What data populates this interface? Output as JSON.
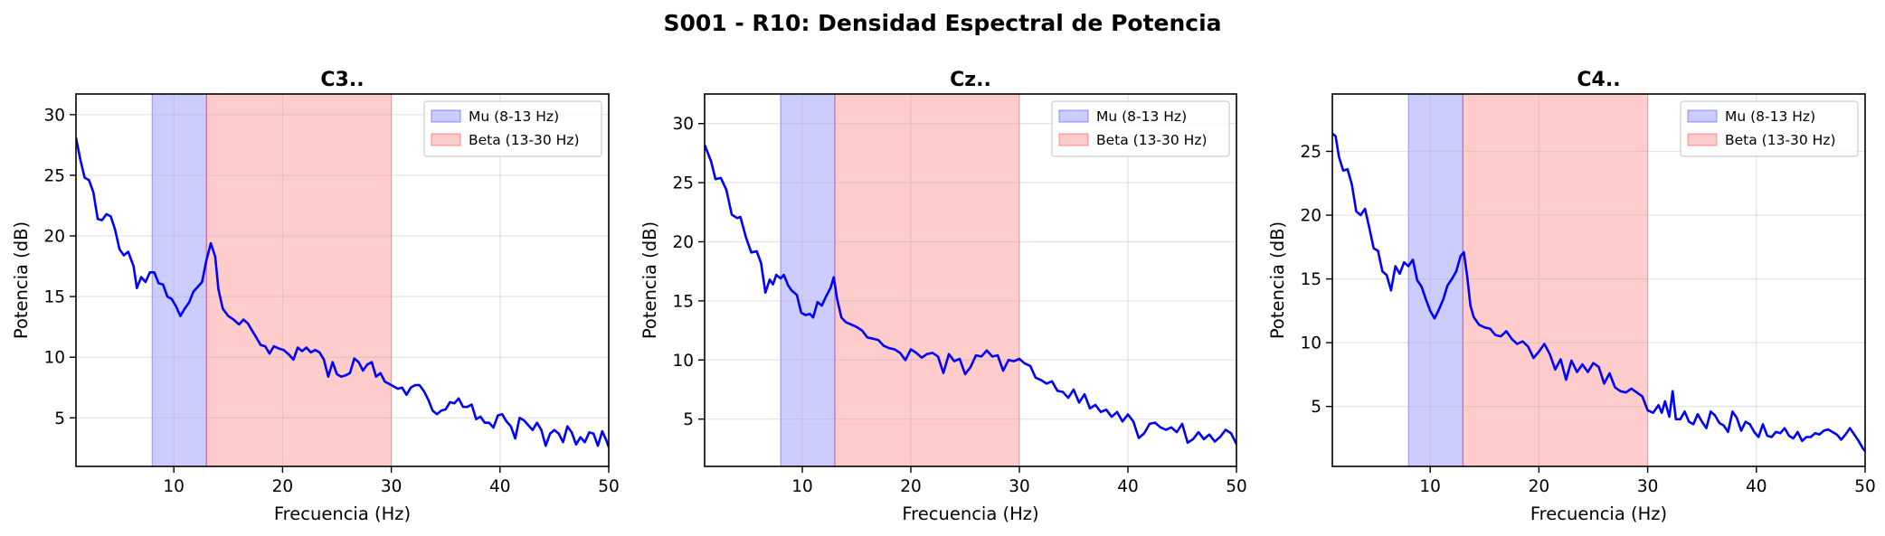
{
  "figure_title": "S001 - R10: Densidad Espectral de Potencia",
  "chart_data": [
    {
      "type": "line",
      "title": "C3..",
      "xlabel": "Frecuencia (Hz)",
      "ylabel": "Potencia (dB)",
      "xlim": [
        1,
        50
      ],
      "ylim": [
        1.0,
        31.7
      ],
      "xticks": [
        10,
        20,
        30,
        40,
        50
      ],
      "yticks": [
        5,
        10,
        15,
        20,
        25,
        30
      ],
      "grid": true,
      "legend_position": "upper right",
      "bands": [
        {
          "name": "Mu (8-13 Hz)",
          "range": [
            8,
            13
          ],
          "color": "#0000ff"
        },
        {
          "name": "Beta (13-30 Hz)",
          "range": [
            13,
            30
          ],
          "color": "#ff0000"
        }
      ],
      "series": [
        {
          "color": "#0000ff",
          "points": [
            [
              1,
              28.0
            ],
            [
              1.5,
              26.0
            ],
            [
              2,
              24.8
            ],
            [
              2.5,
              24.5
            ],
            [
              3,
              23.5
            ],
            [
              3.5,
              21.3
            ],
            [
              4,
              21.4
            ],
            [
              4.5,
              21.8
            ],
            [
              5,
              21.5
            ],
            [
              5.5,
              20.4
            ],
            [
              6,
              18.8
            ],
            [
              6.5,
              18.3
            ],
            [
              7,
              18.6
            ],
            [
              7.5,
              17.4
            ],
            [
              8,
              15.6
            ],
            [
              8.5,
              16.6
            ],
            [
              9,
              16.2
            ],
            [
              9.5,
              17.0
            ],
            [
              10,
              16.9
            ],
            [
              10.5,
              16.0
            ],
            [
              11,
              15.8
            ],
            [
              11.5,
              14.5
            ],
            [
              12,
              14.7
            ],
            [
              12.5,
              14.2
            ],
            [
              13,
              13.8
            ],
            [
              13.5,
              13.3
            ],
            [
              14,
              13.8
            ],
            [
              14.5,
              14.4
            ],
            [
              15,
              15.4
            ],
            [
              15.5,
              15.8
            ],
            [
              16,
              16.2
            ],
            [
              16.5,
              18.0
            ],
            [
              17,
              19.4
            ],
            [
              17.5,
              18.2
            ],
            [
              18,
              15.5
            ],
            [
              18.5,
              13.9
            ],
            [
              19,
              13.4
            ],
            [
              19.5,
              13.3
            ],
            [
              20,
              12.8
            ],
            [
              20.5,
              13.0
            ],
            [
              21,
              12.7
            ],
            [
              21.5,
              12.1
            ],
            [
              22,
              11.6
            ],
            [
              22.5,
              11.0
            ],
            [
              23,
              11.0
            ],
            [
              23.5,
              10.3
            ],
            [
              24,
              10.9
            ],
            [
              24.5,
              10.6
            ],
            [
              25,
              10.6
            ],
            [
              25.5,
              10.2
            ],
            [
              26,
              9.7
            ],
            [
              26.5,
              10.8
            ],
            [
              27,
              10.5
            ],
            [
              27.5,
              10.7
            ],
            [
              28,
              10.4
            ],
            [
              28.5,
              10.6
            ],
            [
              29,
              10.5
            ],
            [
              29.5,
              9.7
            ],
            [
              30,
              8.4
            ],
            [
              30.5,
              9.6
            ],
            [
              31,
              8.5
            ],
            [
              31.5,
              8.4
            ],
            [
              32,
              8.5
            ],
            [
              32.5,
              8.7
            ],
            [
              33,
              9.8
            ],
            [
              33.5,
              9.6
            ],
            [
              34,
              8.9
            ],
            [
              34.5,
              9.3
            ],
            [
              35,
              9.6
            ],
            [
              35.5,
              8.4
            ],
            [
              36,
              8.7
            ],
            [
              36.5,
              8.0
            ],
            [
              37,
              7.7
            ],
            [
              37.5,
              7.6
            ],
            [
              38,
              7.4
            ],
            [
              38.5,
              7.5
            ],
            [
              39,
              6.9
            ],
            [
              39.5,
              7.5
            ],
            [
              40,
              7.7
            ],
            [
              40.5,
              7.7
            ],
            [
              41,
              7.2
            ],
            [
              41.5,
              6.5
            ],
            [
              42,
              5.6
            ],
            [
              42.5,
              5.3
            ],
            [
              43,
              5.6
            ]
          ],
          "note": "sampled every 0.5 Hz"
        }
      ]
    },
    {
      "type": "line",
      "title": "Cz..",
      "xlabel": "Frecuencia (Hz)",
      "ylabel": "Potencia (dB)",
      "xlim": [
        1,
        50
      ],
      "ylim": [
        1.0,
        32.5
      ],
      "xticks": [
        10,
        20,
        30,
        40,
        50
      ],
      "yticks": [
        5,
        10,
        15,
        20,
        25,
        30
      ],
      "grid": true,
      "legend_position": "upper right",
      "bands": [
        {
          "name": "Mu (8-13 Hz)",
          "range": [
            8,
            13
          ],
          "color": "#0000ff"
        },
        {
          "name": "Beta (13-30 Hz)",
          "range": [
            13,
            30
          ],
          "color": "#ff0000"
        }
      ],
      "series": [
        {
          "color": "#0000ff",
          "points": []
        }
      ]
    },
    {
      "type": "line",
      "title": "C4..",
      "xlabel": "Frecuencia (Hz)",
      "ylabel": "Potencia (dB)",
      "xlim": [
        1,
        50
      ],
      "ylim": [
        0.3,
        29.5
      ],
      "xticks": [
        10,
        20,
        30,
        40,
        50
      ],
      "yticks": [
        5,
        10,
        15,
        20,
        25
      ],
      "grid": true,
      "legend_position": "upper right",
      "bands": [
        {
          "name": "Mu (8-13 Hz)",
          "range": [
            8,
            13
          ],
          "color": "#0000ff"
        },
        {
          "name": "Beta (13-30 Hz)",
          "range": [
            13,
            30
          ],
          "color": "#ff0000"
        }
      ],
      "series": [
        {
          "color": "#0000ff",
          "points": []
        }
      ]
    }
  ]
}
